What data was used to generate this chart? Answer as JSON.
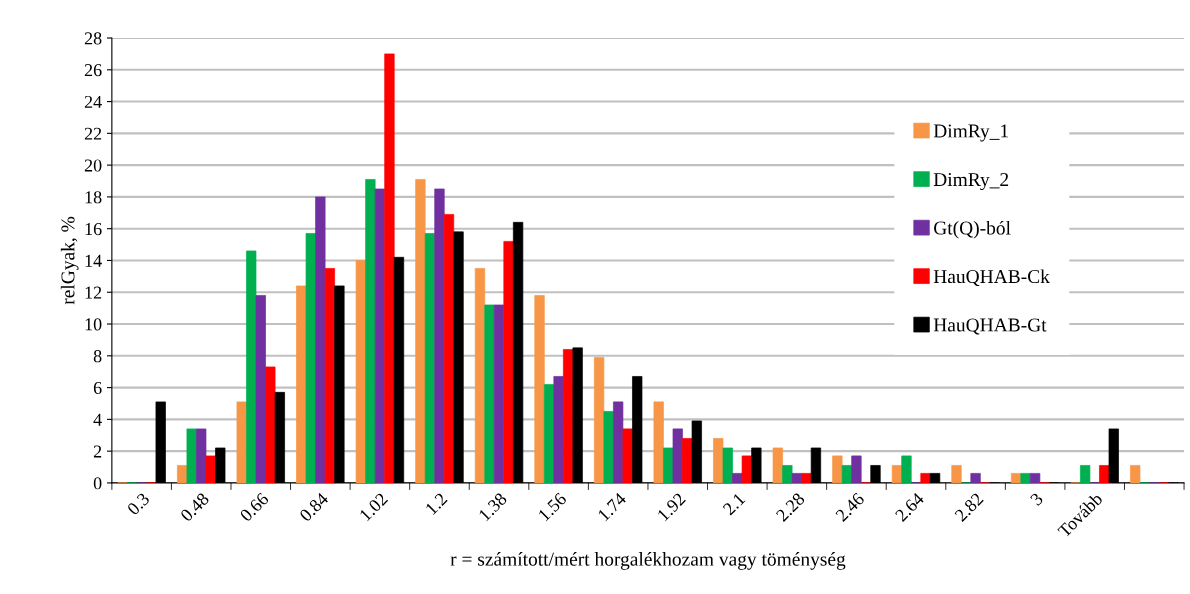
{
  "chart_data": {
    "type": "bar",
    "xlabel": "r = számított/mért horgalékhozam vagy töménység",
    "ylabel": "relGyak, %",
    "categories": [
      "0.3",
      "0.48",
      "0.66",
      "0.84",
      "1.02",
      "1.2",
      "1.38",
      "1.56",
      "1.74",
      "1.92",
      "2.1",
      "2.28",
      "2.46",
      "2.64",
      "2.82",
      "3",
      "Tovább",
      null
    ],
    "series": [
      {
        "name": "DimRy_1",
        "color": "#f79646",
        "values": [
          0,
          1.1,
          5.1,
          12.4,
          14.0,
          19.1,
          13.5,
          11.8,
          7.9,
          5.1,
          2.8,
          2.2,
          1.7,
          1.1,
          1.1,
          0.6,
          0,
          1.1
        ]
      },
      {
        "name": "DimRy_2",
        "color": "#00b050",
        "values": [
          0,
          3.4,
          14.6,
          15.7,
          19.1,
          15.7,
          11.2,
          6.2,
          4.5,
          2.2,
          2.2,
          1.1,
          1.1,
          1.7,
          0,
          0.6,
          1.1,
          0
        ]
      },
      {
        "name": "Gt(Q)-ból",
        "color": "#7030a0",
        "values": [
          0,
          3.4,
          11.8,
          18.0,
          18.5,
          18.5,
          11.2,
          6.7,
          5.1,
          3.4,
          0.6,
          0.6,
          1.7,
          0,
          0.6,
          0.6,
          0,
          0
        ]
      },
      {
        "name": "HauQHAB-Ck",
        "color": "#ff0000",
        "values": [
          0,
          1.7,
          7.3,
          13.5,
          27.0,
          16.9,
          15.2,
          8.4,
          3.4,
          2.8,
          1.7,
          0.6,
          0,
          0.6,
          0,
          0,
          1.1,
          0
        ]
      },
      {
        "name": "HauQHAB-Gt",
        "color": "#000000",
        "values": [
          5.1,
          2.2,
          5.7,
          12.4,
          14.2,
          15.8,
          16.4,
          8.5,
          6.7,
          3.9,
          2.2,
          2.2,
          1.1,
          0.6,
          0,
          0,
          3.4,
          0
        ]
      }
    ],
    "ylim": [
      0,
      28
    ],
    "yticks": [
      0,
      2,
      4,
      6,
      8,
      10,
      12,
      14,
      16,
      18,
      20,
      22,
      24,
      26,
      28
    ],
    "grid": "y",
    "legend": "right"
  }
}
